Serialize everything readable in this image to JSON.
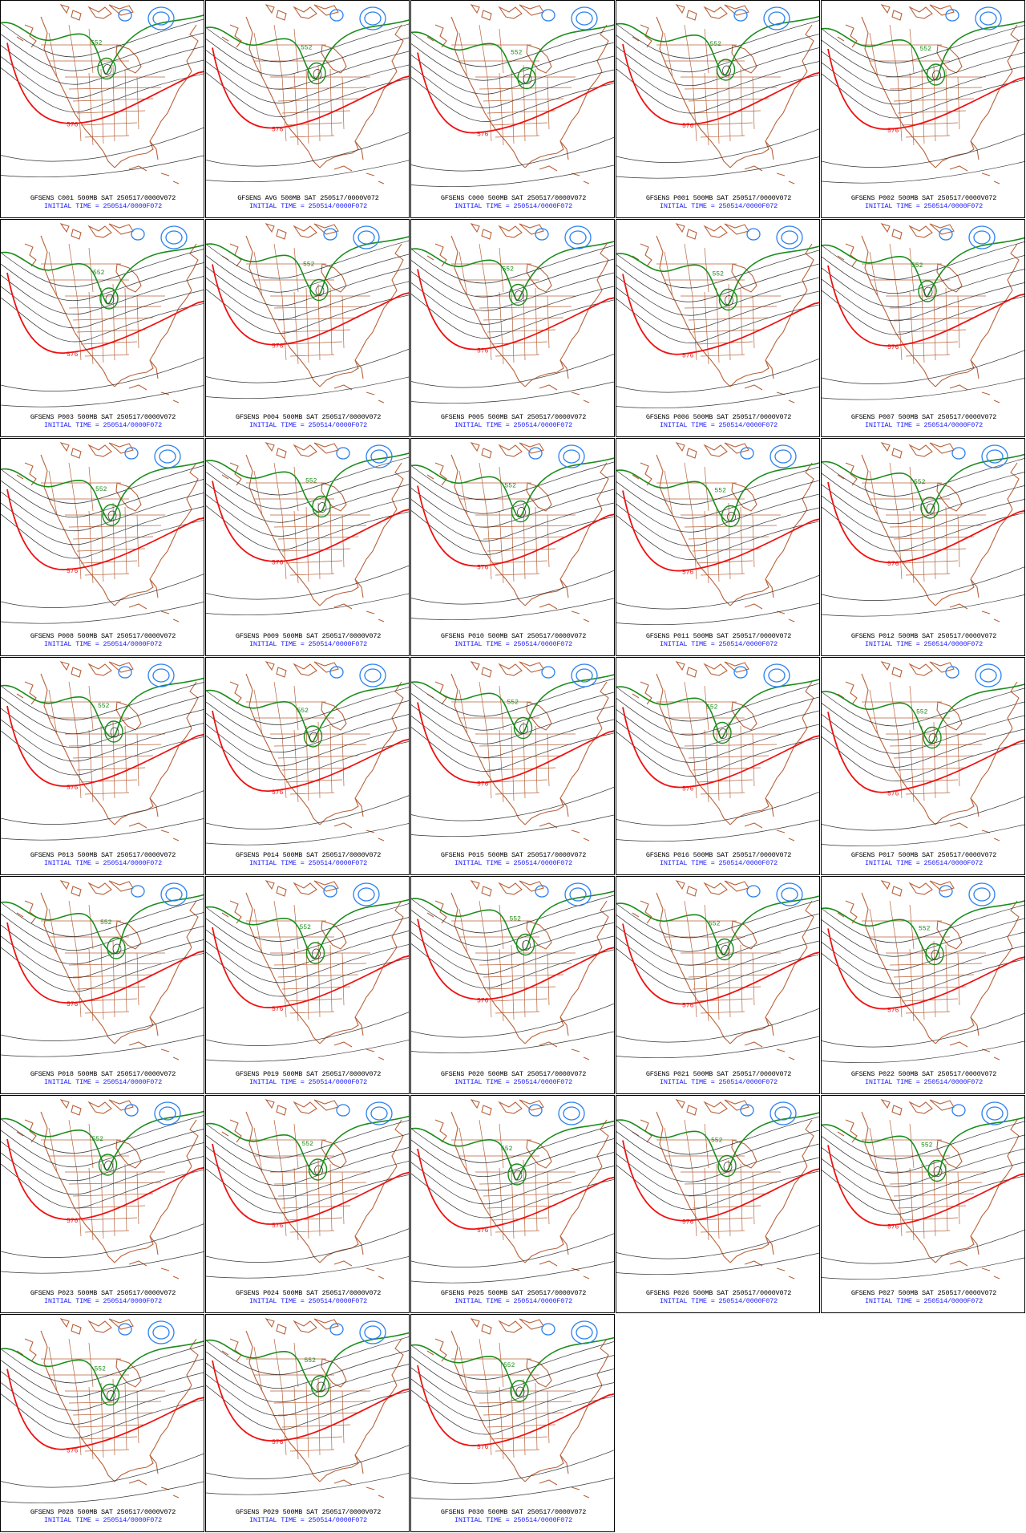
{
  "figure": {
    "initial_time_label": "INITIAL TIME = 250514/0000F072",
    "contour_labels": {
      "green": "552",
      "red": "576"
    },
    "colors": {
      "coast": "#b8623a",
      "green_contour": "#1a8c1a",
      "red_contour": "#ee1111",
      "blue_contour": "#2a80ee",
      "grey_contour": "#333333",
      "caption_blue": "#1a1aff"
    },
    "panels": [
      {
        "title": "GFSENS C001 500MB SAT 250517/0000V072"
      },
      {
        "title": "GFSENS AVG 500MB SAT 250517/0000V072"
      },
      {
        "title": "GFSENS C000 500MB SAT 250517/0000V072"
      },
      {
        "title": "GFSENS P001 500MB SAT 250517/0000V072"
      },
      {
        "title": "GFSENS P002 500MB SAT 250517/0000V072"
      },
      {
        "title": "GFSENS P003 500MB SAT 250517/0000V072"
      },
      {
        "title": "GFSENS P004 500MB SAT 250517/0000V072"
      },
      {
        "title": "GFSENS P005 500MB SAT 250517/0000V072"
      },
      {
        "title": "GFSENS P006 500MB SAT 250517/0000V072"
      },
      {
        "title": "GFSENS P007 500MB SAT 250517/0000V072"
      },
      {
        "title": "GFSENS P008 500MB SAT 250517/0000V072"
      },
      {
        "title": "GFSENS P009 500MB SAT 250517/0000V072"
      },
      {
        "title": "GFSENS P010 500MB SAT 250517/0000V072"
      },
      {
        "title": "GFSENS P011 500MB SAT 250517/0000V072"
      },
      {
        "title": "GFSENS P012 500MB SAT 250517/0000V072"
      },
      {
        "title": "GFSENS P013 500MB SAT 250517/0000V072"
      },
      {
        "title": "GFSENS P014 500MB SAT 250517/0000V072"
      },
      {
        "title": "GFSENS P015 500MB SAT 250517/0000V072"
      },
      {
        "title": "GFSENS P016 500MB SAT 250517/0000V072"
      },
      {
        "title": "GFSENS P017 500MB SAT 250517/0000V072"
      },
      {
        "title": "GFSENS P018 500MB SAT 250517/0000V072"
      },
      {
        "title": "GFSENS P019 500MB SAT 250517/0000V072"
      },
      {
        "title": "GFSENS P020 500MB SAT 250517/0000V072"
      },
      {
        "title": "GFSENS P021 500MB SAT 250517/0000V072"
      },
      {
        "title": "GFSENS P022 500MB SAT 250517/0000V072"
      },
      {
        "title": "GFSENS P023 500MB SAT 250517/0000V072"
      },
      {
        "title": "GFSENS P024 500MB SAT 250517/0000V072"
      },
      {
        "title": "GFSENS P025 500MB SAT 250517/0000V072"
      },
      {
        "title": "GFSENS P026 500MB SAT 250517/0000V072"
      },
      {
        "title": "GFSENS P027 500MB SAT 250517/0000V072"
      },
      {
        "title": "GFSENS P028 500MB SAT 250517/0000V072"
      },
      {
        "title": "GFSENS P029 500MB SAT 250517/0000V072"
      },
      {
        "title": "GFSENS P030 500MB SAT 250517/0000V072"
      }
    ]
  }
}
